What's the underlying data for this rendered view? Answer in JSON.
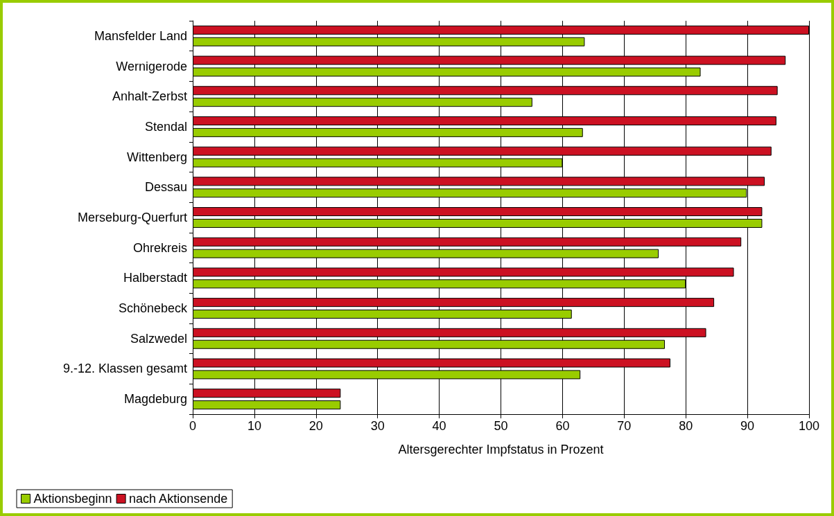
{
  "chart_data": {
    "type": "bar",
    "orientation": "horizontal",
    "xlabel": "Altersgerechter Impfstatus in Prozent",
    "categories": [
      "Mansfelder Land",
      "Wernigerode",
      "Anhalt-Zerbst",
      "Stendal",
      "Wittenberg",
      "Dessau",
      "Merseburg-Querfurt",
      "Ohrekreis",
      "Halberstadt",
      "Schönebeck",
      "Salzwedel",
      "9.-12. Klassen gesamt",
      "Magdeburg"
    ],
    "series": [
      {
        "name": "Aktionsbeginn",
        "color": "#99cc00",
        "values": [
          63.6,
          82.4,
          55.1,
          63.3,
          60.0,
          89.9,
          92.4,
          75.6,
          80.0,
          61.5,
          76.6,
          62.9,
          24.0
        ]
      },
      {
        "name": "nach Aktionsende",
        "color": "#cc1122",
        "values": [
          100,
          96.2,
          94.9,
          94.7,
          93.9,
          92.8,
          92.4,
          89.0,
          87.8,
          84.6,
          83.3,
          77.5,
          24.0
        ]
      }
    ],
    "xlim": [
      0,
      100
    ],
    "xticks": [
      0,
      10,
      20,
      30,
      40,
      50,
      60,
      70,
      80,
      90,
      100
    ],
    "grid": "x",
    "legend": "bottom left"
  }
}
